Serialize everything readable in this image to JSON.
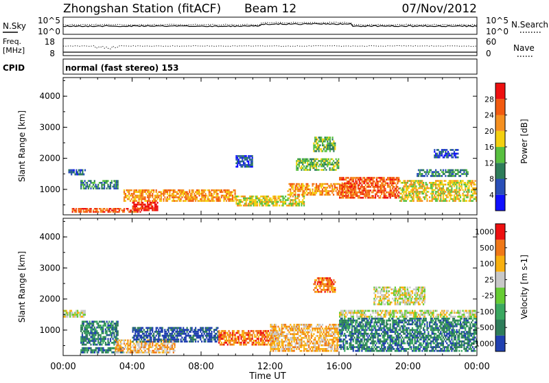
{
  "header": {
    "station": "Zhongshan Station (fitACF)",
    "beam": "Beam 12",
    "date": "07/Nov/2012"
  },
  "noise_panel": {
    "left_label": "N.Sky",
    "right_label": "N.Search",
    "left_ticks": [
      "10^5",
      "10^0"
    ],
    "right_ticks": [
      "10^5",
      "10^0"
    ]
  },
  "freq_panel": {
    "left_label_line1": "Freq.",
    "left_label_line2": "[MHz]",
    "left_ticks": [
      "18",
      "8"
    ],
    "right_ticks": [
      "60",
      "0"
    ],
    "right_label": "Nave"
  },
  "cpid_panel": {
    "label": "CPID",
    "text": "normal (fast stereo) 153"
  },
  "x_axis": {
    "ticks": [
      "00:00",
      "04:00",
      "08:00",
      "12:00",
      "16:00",
      "20:00",
      "00:00"
    ],
    "label": "Time UT"
  },
  "chart_data": [
    {
      "type": "heatmap",
      "name": "power",
      "ylabel": "Slant Range [km]",
      "yticks": [
        "1000",
        "2000",
        "3000",
        "4000"
      ],
      "ylim": [
        180,
        4600
      ],
      "xlim_hours": [
        0,
        24
      ],
      "colorbar_label": "Power [dB]",
      "colorbar_ticks": [
        "4",
        "8",
        "12",
        "16",
        "20",
        "24",
        "28"
      ],
      "colors": [
        "#1010ff",
        "#2a4fb8",
        "#2e7d5a",
        "#58c040",
        "#f4d010",
        "#f59020",
        "#f25a10",
        "#ee1010"
      ],
      "regions": [
        {
          "t0": 0.3,
          "t1": 1.3,
          "r0": 1450,
          "r1": 1650,
          "level": 1
        },
        {
          "t0": 1.0,
          "t1": 3.2,
          "r0": 1000,
          "r1": 1300,
          "level": 2
        },
        {
          "t0": 0.5,
          "t1": 4.5,
          "r0": 250,
          "r1": 400,
          "level": 6
        },
        {
          "t0": 3.5,
          "t1": 10.0,
          "r0": 600,
          "r1": 1000,
          "level": 5
        },
        {
          "t0": 4.0,
          "t1": 5.5,
          "r0": 300,
          "r1": 600,
          "level": 7
        },
        {
          "t0": 10.0,
          "t1": 11.0,
          "r0": 1700,
          "r1": 2100,
          "level": 1
        },
        {
          "t0": 10.0,
          "t1": 14.0,
          "r0": 450,
          "r1": 800,
          "level": 4
        },
        {
          "t0": 13.5,
          "t1": 16.0,
          "r0": 1600,
          "r1": 2000,
          "level": 3
        },
        {
          "t0": 14.5,
          "t1": 15.8,
          "r0": 2200,
          "r1": 2700,
          "level": 3
        },
        {
          "t0": 13.0,
          "t1": 17.0,
          "r0": 800,
          "r1": 1200,
          "level": 5
        },
        {
          "t0": 16.0,
          "t1": 19.5,
          "r0": 700,
          "r1": 1400,
          "level": 6
        },
        {
          "t0": 19.5,
          "t1": 24.0,
          "r0": 600,
          "r1": 1300,
          "level": 4
        },
        {
          "t0": 20.5,
          "t1": 23.5,
          "r0": 1400,
          "r1": 1650,
          "level": 2
        },
        {
          "t0": 21.5,
          "t1": 23.0,
          "r0": 2000,
          "r1": 2300,
          "level": 1
        }
      ]
    },
    {
      "type": "heatmap",
      "name": "velocity",
      "ylabel": "Slant Range [km]",
      "yticks": [
        "1000",
        "2000",
        "3000",
        "4000"
      ],
      "ylim": [
        180,
        4600
      ],
      "xlim_hours": [
        0,
        24
      ],
      "colorbar_label": "Velocity [m s-1]",
      "colorbar_ticks": [
        "1000",
        "500",
        "100",
        "25",
        "-25",
        "-100",
        "-500",
        "-1000"
      ],
      "colors": [
        "#2040b0",
        "#2e7d5a",
        "#3aa860",
        "#66cc33",
        "#c8c8c8",
        "#f8b010",
        "#f07818",
        "#ee1010"
      ],
      "regions": [
        {
          "t0": 0.0,
          "t1": 1.3,
          "r0": 1400,
          "r1": 1650,
          "level": 4
        },
        {
          "t0": 1.0,
          "t1": 3.2,
          "r0": 500,
          "r1": 1300,
          "level": 1
        },
        {
          "t0": 1.0,
          "t1": 3.5,
          "r0": 250,
          "r1": 450,
          "level": 1
        },
        {
          "t0": 3.0,
          "t1": 6.5,
          "r0": 250,
          "r1": 700,
          "level": 5
        },
        {
          "t0": 4.0,
          "t1": 9.0,
          "r0": 600,
          "r1": 1100,
          "level": 0
        },
        {
          "t0": 9.0,
          "t1": 12.5,
          "r0": 500,
          "r1": 1000,
          "level": 6
        },
        {
          "t0": 12.0,
          "t1": 16.0,
          "r0": 300,
          "r1": 1200,
          "level": 5
        },
        {
          "t0": 14.5,
          "t1": 15.8,
          "r0": 2200,
          "r1": 2700,
          "level": 6
        },
        {
          "t0": 16.0,
          "t1": 24.0,
          "r0": 300,
          "r1": 1400,
          "level": 1
        },
        {
          "t0": 16.0,
          "t1": 24.0,
          "r0": 1400,
          "r1": 1650,
          "level": 4
        },
        {
          "t0": 18.0,
          "t1": 21.0,
          "r0": 1800,
          "r1": 2400,
          "level": 4
        }
      ]
    }
  ]
}
